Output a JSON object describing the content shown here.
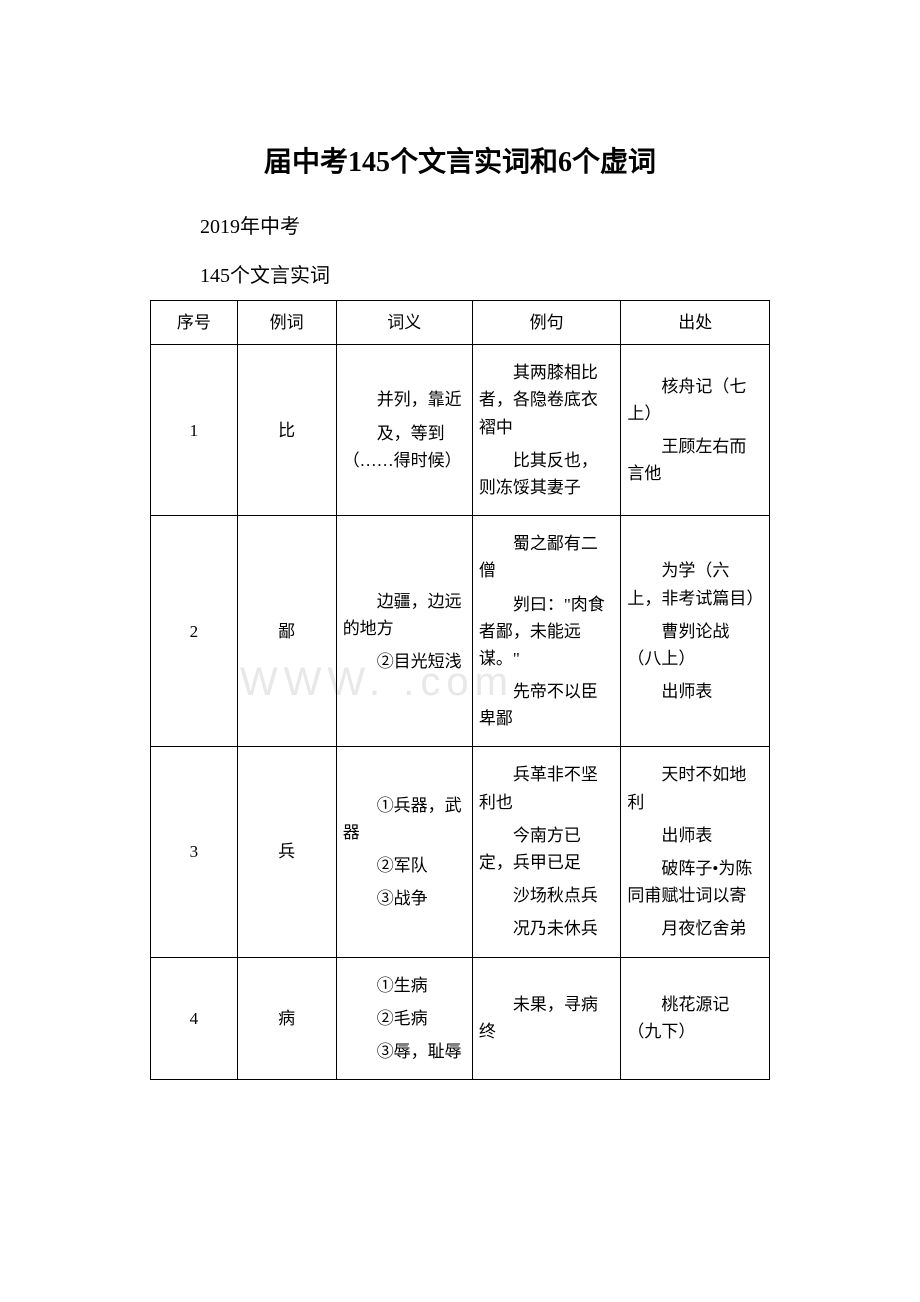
{
  "title": "届中考145个文言实词和6个虚词",
  "subtitle": "2019年中考",
  "section_heading": "145个文言实词",
  "watermark": "WWW.           .com",
  "table": {
    "headers": {
      "index": "序号",
      "word": "例词",
      "meaning": "词义",
      "example": "例句",
      "source": "出处"
    },
    "rows": [
      {
        "index": "1",
        "word": "比",
        "meaning": [
          "并列，靠近",
          "及，等到（……得时候）"
        ],
        "example": [
          "其两膝相比者，各隐卷底衣褶中",
          "比其反也，则冻馁其妻子"
        ],
        "source": [
          "核舟记（七上）",
          "王顾左右而言他"
        ]
      },
      {
        "index": "2",
        "word": "鄙",
        "meaning": [
          "边疆，边远的地方",
          "②目光短浅"
        ],
        "example": [
          "蜀之鄙有二僧",
          "刿曰：\"肉食者鄙，未能远谋。\"",
          "先帝不以臣卑鄙"
        ],
        "source": [
          "为学（六上，非考试篇目）",
          "曹刿论战（八上）",
          "出师表"
        ]
      },
      {
        "index": "3",
        "word": "兵",
        "meaning": [
          "①兵器，武器",
          "②军队",
          "③战争"
        ],
        "example": [
          "兵革非不坚利也",
          "今南方已定，兵甲已足",
          "沙场秋点兵",
          "况乃未休兵"
        ],
        "source": [
          "天时不如地利",
          "出师表",
          "破阵子•为陈同甫赋壮词以寄",
          "月夜忆舍弟"
        ]
      },
      {
        "index": "4",
        "word": "病",
        "meaning": [
          "①生病",
          "②毛病",
          "③辱，耻辱"
        ],
        "example": [
          "未果，寻病终"
        ],
        "source": [
          "桃花源记（九下）"
        ]
      }
    ]
  }
}
